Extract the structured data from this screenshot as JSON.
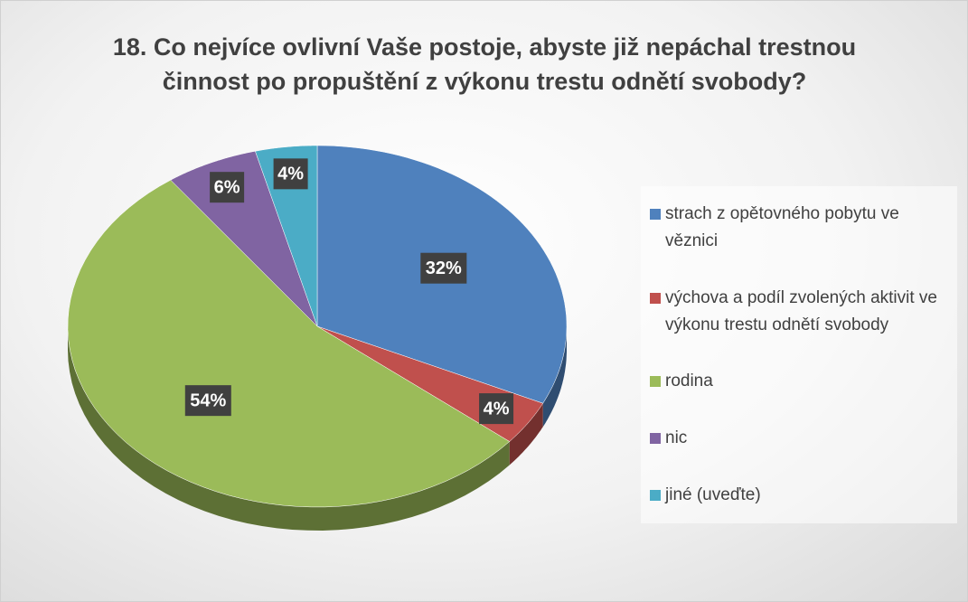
{
  "chart_data": {
    "type": "pie",
    "title": "18. Co nejvíce ovlivní Vaše postoje, abyste již nepáchal trestnou činnost po propuštění z výkonu trestu odnětí svobody?",
    "categories": [
      "strach z opětovného pobytu ve věznici",
      "výchova a podíl zvolených aktivit ve výkonu trestu odnětí svobody",
      "rodina",
      "nic",
      "jiné (uveďte)"
    ],
    "values": [
      32,
      4,
      54,
      6,
      4
    ],
    "value_labels": [
      "32%",
      "4%",
      "54%",
      "6%",
      "4%"
    ],
    "colors": [
      "#4f81bd",
      "#c0504d",
      "#9bbb59",
      "#8064a2",
      "#4bacc6"
    ],
    "legend": "right"
  }
}
